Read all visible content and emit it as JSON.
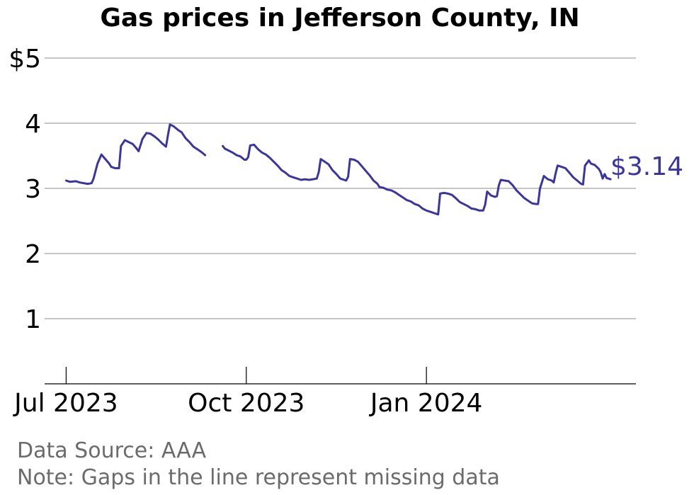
{
  "chart_data": {
    "type": "line",
    "title": "Gas prices in Jefferson County, IN",
    "xlabel": "",
    "ylabel": "",
    "ylim": [
      0,
      5
    ],
    "yticks": [
      {
        "value": 1,
        "label": "1"
      },
      {
        "value": 2,
        "label": "2"
      },
      {
        "value": 3,
        "label": "3"
      },
      {
        "value": 4,
        "label": "4"
      },
      {
        "value": 5,
        "label": "$5"
      }
    ],
    "xlim": [
      "2023-06-20",
      "2024-04-17"
    ],
    "xticks": [
      {
        "date": "2023-07-01",
        "label": "Jul 2023"
      },
      {
        "date": "2023-10-01",
        "label": "Oct 2023"
      },
      {
        "date": "2024-01-01",
        "label": "Jan 2024"
      }
    ],
    "grid": true,
    "line_color": "#3a35a0",
    "end_label": "$3.14",
    "series": [
      {
        "segments": [
          [
            [
              "2023-07-01",
              3.12
            ],
            [
              "2023-07-03",
              3.1
            ],
            [
              "2023-07-06",
              3.11
            ],
            [
              "2023-07-08",
              3.09
            ],
            [
              "2023-07-12",
              3.07
            ],
            [
              "2023-07-14",
              3.08
            ],
            [
              "2023-07-15",
              3.15
            ],
            [
              "2023-07-17",
              3.38
            ],
            [
              "2023-07-19",
              3.52
            ],
            [
              "2023-07-21",
              3.45
            ],
            [
              "2023-07-23",
              3.38
            ],
            [
              "2023-07-24",
              3.33
            ],
            [
              "2023-07-26",
              3.31
            ],
            [
              "2023-07-28",
              3.31
            ],
            [
              "2023-07-29",
              3.65
            ],
            [
              "2023-07-31",
              3.74
            ],
            [
              "2023-08-02",
              3.71
            ],
            [
              "2023-08-04",
              3.68
            ],
            [
              "2023-08-06",
              3.61
            ],
            [
              "2023-08-07",
              3.57
            ],
            [
              "2023-08-09",
              3.76
            ],
            [
              "2023-08-11",
              3.85
            ],
            [
              "2023-08-13",
              3.84
            ],
            [
              "2023-08-15",
              3.8
            ],
            [
              "2023-08-17",
              3.75
            ],
            [
              "2023-08-19",
              3.69
            ],
            [
              "2023-08-21",
              3.64
            ],
            [
              "2023-08-22",
              3.82
            ],
            [
              "2023-08-23",
              3.98
            ],
            [
              "2023-08-25",
              3.95
            ],
            [
              "2023-08-27",
              3.9
            ],
            [
              "2023-08-29",
              3.86
            ],
            [
              "2023-08-31",
              3.77
            ],
            [
              "2023-09-02",
              3.71
            ],
            [
              "2023-09-04",
              3.64
            ],
            [
              "2023-09-06",
              3.6
            ],
            [
              "2023-09-08",
              3.56
            ],
            [
              "2023-09-10",
              3.51
            ]
          ],
          [
            [
              "2023-09-19",
              3.65
            ],
            [
              "2023-09-20",
              3.61
            ],
            [
              "2023-09-22",
              3.58
            ],
            [
              "2023-09-24",
              3.55
            ],
            [
              "2023-09-26",
              3.51
            ],
            [
              "2023-09-28",
              3.49
            ],
            [
              "2023-09-30",
              3.44
            ],
            [
              "2023-10-01",
              3.44
            ],
            [
              "2023-10-02",
              3.48
            ],
            [
              "2023-10-03",
              3.66
            ],
            [
              "2023-10-05",
              3.67
            ],
            [
              "2023-10-07",
              3.6
            ],
            [
              "2023-10-09",
              3.55
            ],
            [
              "2023-10-11",
              3.52
            ],
            [
              "2023-10-13",
              3.47
            ],
            [
              "2023-10-15",
              3.41
            ],
            [
              "2023-10-17",
              3.35
            ],
            [
              "2023-10-19",
              3.28
            ],
            [
              "2023-10-21",
              3.24
            ],
            [
              "2023-10-23",
              3.19
            ],
            [
              "2023-10-25",
              3.17
            ],
            [
              "2023-10-27",
              3.15
            ],
            [
              "2023-10-29",
              3.13
            ],
            [
              "2023-10-31",
              3.14
            ],
            [
              "2023-11-02",
              3.13
            ],
            [
              "2023-11-04",
              3.14
            ],
            [
              "2023-11-06",
              3.15
            ],
            [
              "2023-11-07",
              3.25
            ],
            [
              "2023-11-08",
              3.45
            ],
            [
              "2023-11-10",
              3.41
            ],
            [
              "2023-11-12",
              3.37
            ],
            [
              "2023-11-14",
              3.28
            ],
            [
              "2023-11-16",
              3.22
            ],
            [
              "2023-11-18",
              3.15
            ],
            [
              "2023-11-20",
              3.13
            ],
            [
              "2023-11-21",
              3.12
            ],
            [
              "2023-11-22",
              3.18
            ],
            [
              "2023-11-23",
              3.45
            ],
            [
              "2023-11-25",
              3.44
            ],
            [
              "2023-11-27",
              3.41
            ],
            [
              "2023-11-29",
              3.34
            ],
            [
              "2023-12-01",
              3.27
            ],
            [
              "2023-12-03",
              3.2
            ],
            [
              "2023-12-05",
              3.12
            ],
            [
              "2023-12-07",
              3.07
            ],
            [
              "2023-12-08",
              3.02
            ],
            [
              "2023-12-10",
              3.01
            ],
            [
              "2023-12-12",
              2.98
            ],
            [
              "2023-12-14",
              2.97
            ],
            [
              "2023-12-16",
              2.94
            ],
            [
              "2023-12-18",
              2.9
            ],
            [
              "2023-12-20",
              2.86
            ],
            [
              "2023-12-22",
              2.82
            ],
            [
              "2023-12-24",
              2.8
            ],
            [
              "2023-12-26",
              2.76
            ],
            [
              "2023-12-28",
              2.74
            ],
            [
              "2023-12-30",
              2.69
            ],
            [
              "2024-01-01",
              2.66
            ],
            [
              "2024-01-03",
              2.64
            ],
            [
              "2024-01-05",
              2.62
            ],
            [
              "2024-01-07",
              2.6
            ],
            [
              "2024-01-08",
              2.92
            ],
            [
              "2024-01-10",
              2.93
            ],
            [
              "2024-01-12",
              2.92
            ],
            [
              "2024-01-14",
              2.9
            ],
            [
              "2024-01-16",
              2.85
            ],
            [
              "2024-01-18",
              2.79
            ],
            [
              "2024-01-20",
              2.76
            ],
            [
              "2024-01-22",
              2.73
            ],
            [
              "2024-01-24",
              2.69
            ],
            [
              "2024-01-26",
              2.68
            ],
            [
              "2024-01-28",
              2.66
            ],
            [
              "2024-01-30",
              2.66
            ],
            [
              "2024-01-31",
              2.75
            ],
            [
              "2024-02-01",
              2.95
            ],
            [
              "2024-02-03",
              2.89
            ],
            [
              "2024-02-05",
              2.87
            ],
            [
              "2024-02-06",
              2.88
            ],
            [
              "2024-02-07",
              3.05
            ],
            [
              "2024-02-08",
              3.13
            ],
            [
              "2024-02-10",
              3.12
            ],
            [
              "2024-02-12",
              3.11
            ],
            [
              "2024-02-14",
              3.05
            ],
            [
              "2024-02-16",
              2.97
            ],
            [
              "2024-02-18",
              2.91
            ],
            [
              "2024-02-20",
              2.85
            ],
            [
              "2024-02-22",
              2.81
            ],
            [
              "2024-02-24",
              2.77
            ],
            [
              "2024-02-26",
              2.76
            ],
            [
              "2024-02-27",
              2.76
            ],
            [
              "2024-02-28",
              3.0
            ],
            [
              "2024-03-01",
              3.19
            ],
            [
              "2024-03-03",
              3.14
            ],
            [
              "2024-03-05",
              3.12
            ],
            [
              "2024-03-06",
              3.09
            ],
            [
              "2024-03-07",
              3.23
            ],
            [
              "2024-03-08",
              3.35
            ],
            [
              "2024-03-10",
              3.33
            ],
            [
              "2024-03-12",
              3.31
            ],
            [
              "2024-03-14",
              3.24
            ],
            [
              "2024-03-16",
              3.17
            ],
            [
              "2024-03-18",
              3.12
            ],
            [
              "2024-03-20",
              3.07
            ],
            [
              "2024-03-21",
              3.06
            ],
            [
              "2024-03-22",
              3.35
            ],
            [
              "2024-03-24",
              3.43
            ],
            [
              "2024-03-25",
              3.38
            ],
            [
              "2024-03-27",
              3.36
            ],
            [
              "2024-03-29",
              3.3
            ],
            [
              "2024-03-30",
              3.25
            ],
            [
              "2024-03-31",
              3.15
            ],
            [
              "2024-04-01",
              3.22
            ],
            [
              "2024-04-02",
              3.16
            ],
            [
              "2024-04-04",
              3.14
            ]
          ]
        ]
      }
    ]
  },
  "notes": {
    "source": "Data Source: AAA",
    "gaps": "Note: Gaps in the line represent missing data"
  }
}
